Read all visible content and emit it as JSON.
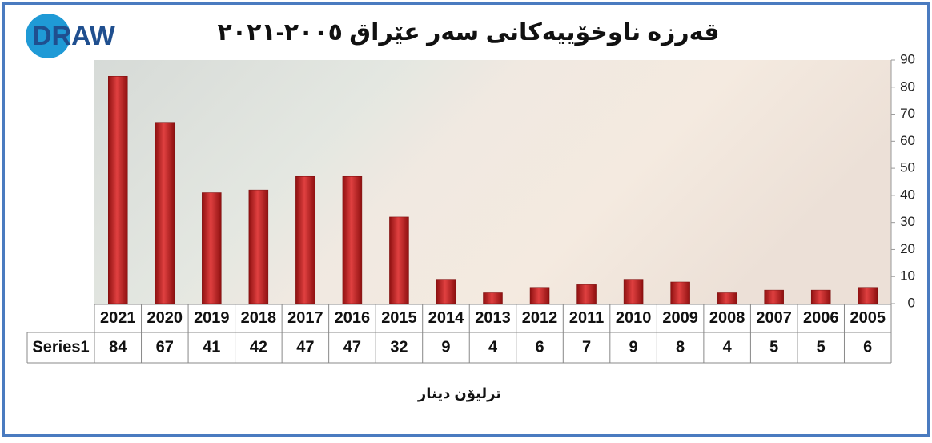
{
  "chart_data": {
    "type": "bar",
    "title": "قەرزە ناوخۆییەکانی سەر عێراق ٢٠٠٥-٢٠٢١",
    "logo": "DRAW",
    "x_label": "ترلیۆن دینار",
    "categories": [
      "2021",
      "2020",
      "2019",
      "2018",
      "2017",
      "2016",
      "2015",
      "2014",
      "2013",
      "2012",
      "2011",
      "2010",
      "2009",
      "2008",
      "2007",
      "2006",
      "2005"
    ],
    "series": [
      {
        "name": "Series1",
        "color": "#c0201e",
        "values": [
          84,
          67,
          41,
          42,
          47,
          47,
          32,
          9,
          4,
          6,
          7,
          9,
          8,
          4,
          5,
          5,
          6
        ]
      }
    ],
    "ylim": [
      0,
      90
    ],
    "yticks": [
      0,
      10,
      20,
      30,
      40,
      50,
      60,
      70,
      80,
      90
    ],
    "y_axis_side": "right",
    "grid": false,
    "data_table": true
  }
}
